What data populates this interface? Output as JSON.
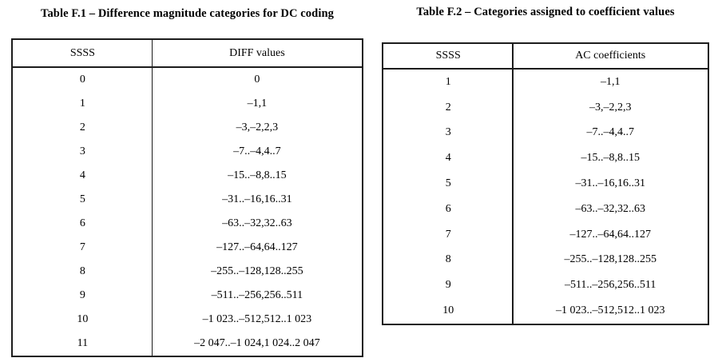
{
  "colors": {
    "background": "#ffffff",
    "text": "#000000",
    "border": "#1c1c1c"
  },
  "tables": [
    {
      "title": "Table F.1 – Difference magnitude categories for DC coding",
      "headers": [
        "SSSS",
        "DIFF values"
      ],
      "rows": [
        [
          "0",
          "0"
        ],
        [
          "1",
          "–1,1"
        ],
        [
          "2",
          "–3,–2,2,3"
        ],
        [
          "3",
          "–7..–4,4..7"
        ],
        [
          "4",
          "–15..–8,8..15"
        ],
        [
          "5",
          "–31..–16,16..31"
        ],
        [
          "6",
          "–63..–32,32..63"
        ],
        [
          "7",
          "–127..–64,64..127"
        ],
        [
          "8",
          "–255..–128,128..255"
        ],
        [
          "9",
          "–511..–256,256..511"
        ],
        [
          "10",
          "–1 023..–512,512..1 023"
        ],
        [
          "11",
          "–2 047..–1 024,1 024..2 047"
        ]
      ]
    },
    {
      "title": "Table F.2 – Categories assigned to coefficient values",
      "headers": [
        "SSSS",
        "AC coefficients"
      ],
      "rows": [
        [
          "1",
          "–1,1"
        ],
        [
          "2",
          "–3,–2,2,3"
        ],
        [
          "3",
          "–7..–4,4..7"
        ],
        [
          "4",
          "–15..–8,8..15"
        ],
        [
          "5",
          "–31..–16,16..31"
        ],
        [
          "6",
          "–63..–32,32..63"
        ],
        [
          "7",
          "–127..–64,64..127"
        ],
        [
          "8",
          "–255..–128,128..255"
        ],
        [
          "9",
          "–511..–256,256..511"
        ],
        [
          "10",
          "–1 023..–512,512..1 023"
        ]
      ]
    }
  ]
}
